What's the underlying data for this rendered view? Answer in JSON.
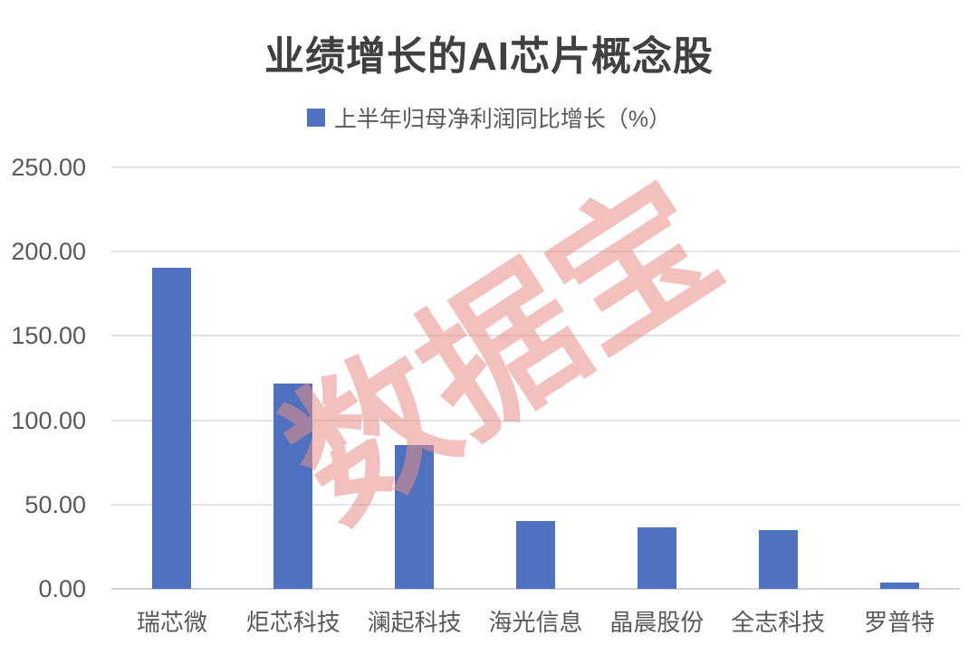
{
  "title": "业绩增长的AI芯片概念股",
  "legend": {
    "label": "上半年归母净利润同比增长（%）",
    "marker_color": "#4e72bf"
  },
  "watermark": {
    "text": "数据宝",
    "color": "rgba(232, 140, 134, 0.55)"
  },
  "colors": {
    "bar": "#4e72bf",
    "title_text": "#404040",
    "axis_text": "#595959",
    "gridline": "#e2e2e2",
    "zero_line": "#d2d2d2"
  },
  "chart_data": {
    "type": "bar",
    "title": "业绩增长的AI芯片概念股",
    "legend_entries": [
      "上半年归母净利润同比增长（%）"
    ],
    "legend_position": "top",
    "categories": [
      "瑞芯微",
      "炬芯科技",
      "澜起科技",
      "海光信息",
      "晶晨股份",
      "全志科技",
      "罗普特"
    ],
    "values": [
      190.6,
      121.7,
      85.1,
      40.2,
      36.5,
      35.0,
      3.8
    ],
    "xlabel": "",
    "ylabel": "",
    "ylim": [
      0,
      250
    ],
    "ytick_step": 50,
    "ytick_labels": [
      "250.00",
      "200.00",
      "150.00",
      "100.00",
      "50.00",
      "0.00"
    ],
    "grid": true
  }
}
